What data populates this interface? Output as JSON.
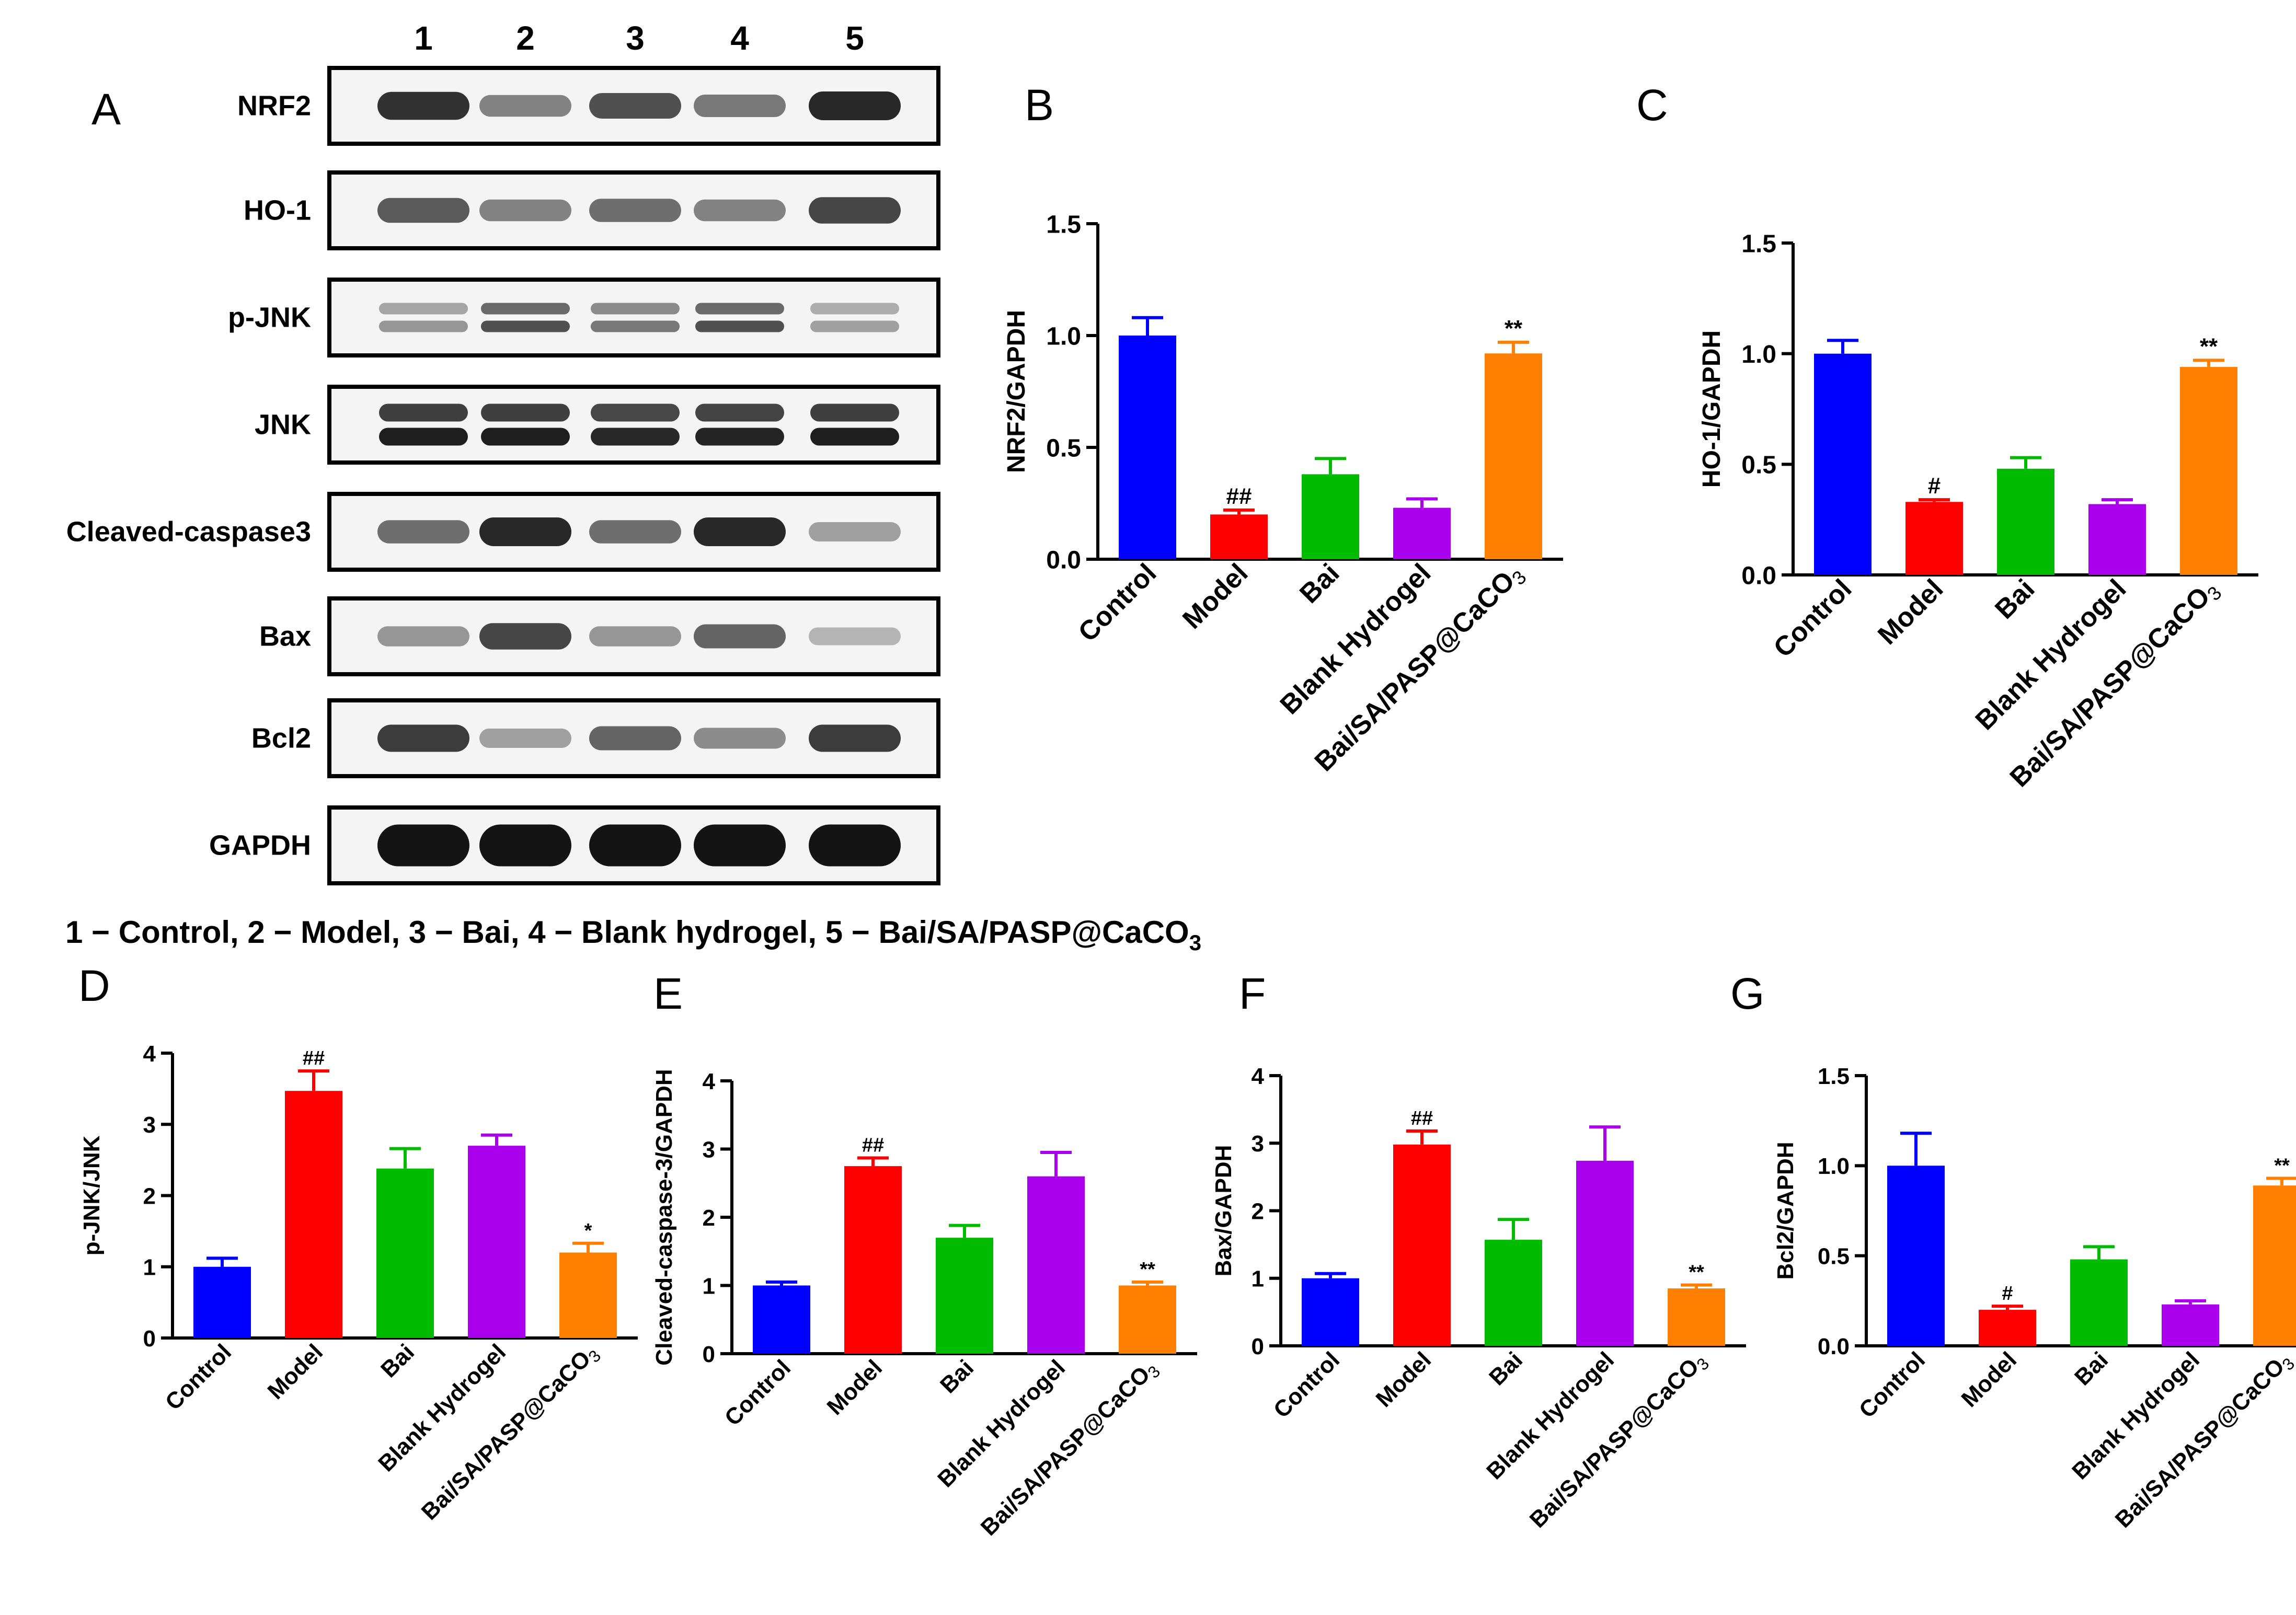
{
  "western_blot": {
    "panel_letter": "A",
    "lanes": [
      "1",
      "2",
      "3",
      "4",
      "5"
    ],
    "proteins": [
      "NRF2",
      "HO-1",
      "p-JNK",
      "JNK",
      "Cleaved-caspase3",
      "Bax",
      "Bcl2",
      "GAPDH"
    ],
    "lane_legend": "1 − Control, 2 − Model, 3 − Bai, 4 − Blank hydrogel, 5 − Bai/SA/PASP@CaCO",
    "lane_legend_subscript": "3"
  },
  "colors": {
    "Control": "#0000ff",
    "Model": "#ff0000",
    "Bai": "#00bb00",
    "Blank Hydrogel": "#aa00ee",
    "Bai/SA/PASP@CaCO3": "#ff8000"
  },
  "chart_data": [
    {
      "panel": "B",
      "type": "bar",
      "categories": [
        "Control",
        "Model",
        "Bai",
        "Blank Hydrogel",
        "Bai/SA/PASP@CaCO3"
      ],
      "values": [
        1.0,
        0.2,
        0.38,
        0.23,
        0.92
      ],
      "errors": [
        0.08,
        0.02,
        0.07,
        0.04,
        0.05
      ],
      "annotations": [
        "",
        "##",
        "",
        "",
        "**"
      ],
      "ylabel": "NRF2/GAPDH",
      "ylim": [
        0,
        1.5
      ],
      "yticks": [
        "0.0",
        "0.5",
        "1.0",
        "1.5"
      ]
    },
    {
      "panel": "C",
      "type": "bar",
      "categories": [
        "Control",
        "Model",
        "Bai",
        "Blank Hydrogel",
        "Bai/SA/PASP@CaCO3"
      ],
      "values": [
        1.0,
        0.33,
        0.48,
        0.32,
        0.94
      ],
      "errors": [
        0.06,
        0.01,
        0.05,
        0.02,
        0.03
      ],
      "annotations": [
        "",
        "#",
        "",
        "",
        "**"
      ],
      "ylabel": "HO-1/GAPDH",
      "ylim": [
        0,
        1.5
      ],
      "yticks": [
        "0.0",
        "0.5",
        "1.0",
        "1.5"
      ]
    },
    {
      "panel": "D",
      "type": "bar",
      "categories": [
        "Control",
        "Model",
        "Bai",
        "Blank Hydrogel",
        "Bai/SA/PASP@CaCO3"
      ],
      "values": [
        1.0,
        3.47,
        2.38,
        2.7,
        1.2
      ],
      "errors": [
        0.12,
        0.28,
        0.28,
        0.15,
        0.13
      ],
      "annotations": [
        "",
        "##",
        "",
        "",
        "*"
      ],
      "ylabel": "p-JNK/JNK",
      "ylim": [
        0,
        4
      ],
      "yticks": [
        "0",
        "1",
        "2",
        "3",
        "4"
      ]
    },
    {
      "panel": "E",
      "type": "bar",
      "categories": [
        "Control",
        "Model",
        "Bai",
        "Blank Hydrogel",
        "Bai/SA/PASP@CaCO3"
      ],
      "values": [
        1.0,
        2.75,
        1.7,
        2.6,
        1.0
      ],
      "errors": [
        0.05,
        0.12,
        0.18,
        0.35,
        0.05
      ],
      "annotations": [
        "",
        "##",
        "",
        "",
        "**"
      ],
      "ylabel": "Cleaved-caspase-3/GAPDH",
      "ylim": [
        0,
        4
      ],
      "yticks": [
        "0",
        "1",
        "2",
        "3",
        "4"
      ]
    },
    {
      "panel": "F",
      "type": "bar",
      "categories": [
        "Control",
        "Model",
        "Bai",
        "Blank Hydrogel",
        "Bai/SA/PASP@CaCO3"
      ],
      "values": [
        1.0,
        2.98,
        1.57,
        2.74,
        0.85
      ],
      "errors": [
        0.07,
        0.2,
        0.3,
        0.5,
        0.05
      ],
      "annotations": [
        "",
        "##",
        "",
        "",
        "**"
      ],
      "ylabel": "Bax/GAPDH",
      "ylim": [
        0,
        4
      ],
      "yticks": [
        "0",
        "1",
        "2",
        "3",
        "4"
      ]
    },
    {
      "panel": "G",
      "type": "bar",
      "categories": [
        "Control",
        "Model",
        "Bai",
        "Blank Hydrogel",
        "Bai/SA/PASP@CaCO3"
      ],
      "values": [
        1.0,
        0.2,
        0.48,
        0.23,
        0.89
      ],
      "errors": [
        0.18,
        0.02,
        0.07,
        0.02,
        0.04
      ],
      "annotations": [
        "",
        "#",
        "",
        "",
        "**"
      ],
      "ylabel": "Bcl2/GAPDH",
      "ylim": [
        0,
        1.5
      ],
      "yticks": [
        "0.0",
        "0.5",
        "1.0",
        "1.5"
      ]
    }
  ]
}
